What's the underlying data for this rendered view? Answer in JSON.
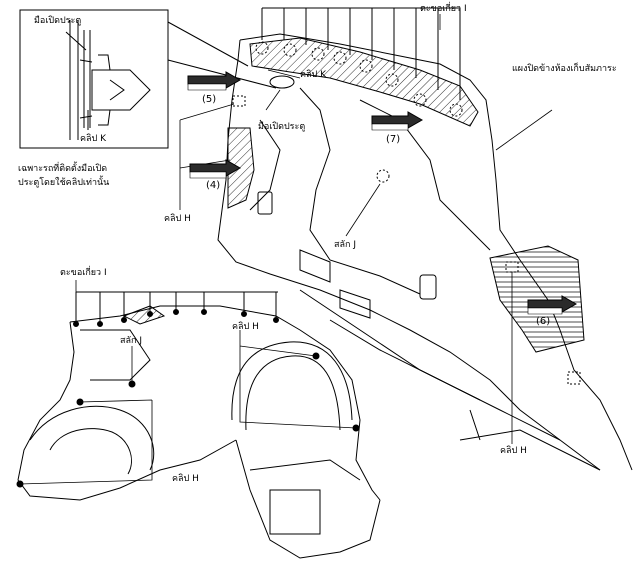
{
  "labels": {
    "inset_door_handle": "มือเปิดประตู",
    "inset_clip_k": "คลิป K",
    "note_line1": "เฉพาะรถที่ติดตั้งมือเปิด",
    "note_line2": "ประตูโดยใช้คลิปเท่านั้น",
    "hook_i_top": "ตะขอเกี่ยว I",
    "side_panel": "แผงปิดข้างห้องเก็บสัมภาระ",
    "clip_k_main": "คลิป K",
    "door_handle_main": "มือเปิดประตู",
    "clip_h_left": "คลิป H",
    "stud_j_main": "สลัก J",
    "clip_h_right": "คลิป H",
    "hook_i_lower": "ตะขอเกี่ยว I",
    "clip_h_lower_mid": "คลิป H",
    "stud_j_lower": "สลัก J",
    "clip_h_lower_bottom": "คลิป H"
  },
  "callouts": {
    "n5": "(5)",
    "n7": "(7)",
    "n4": "(4)",
    "n6": "(6)"
  },
  "colors": {
    "line": "#000000",
    "arrow_fill": "#2b2b2b",
    "hatch": "#000000",
    "background": "#ffffff"
  }
}
